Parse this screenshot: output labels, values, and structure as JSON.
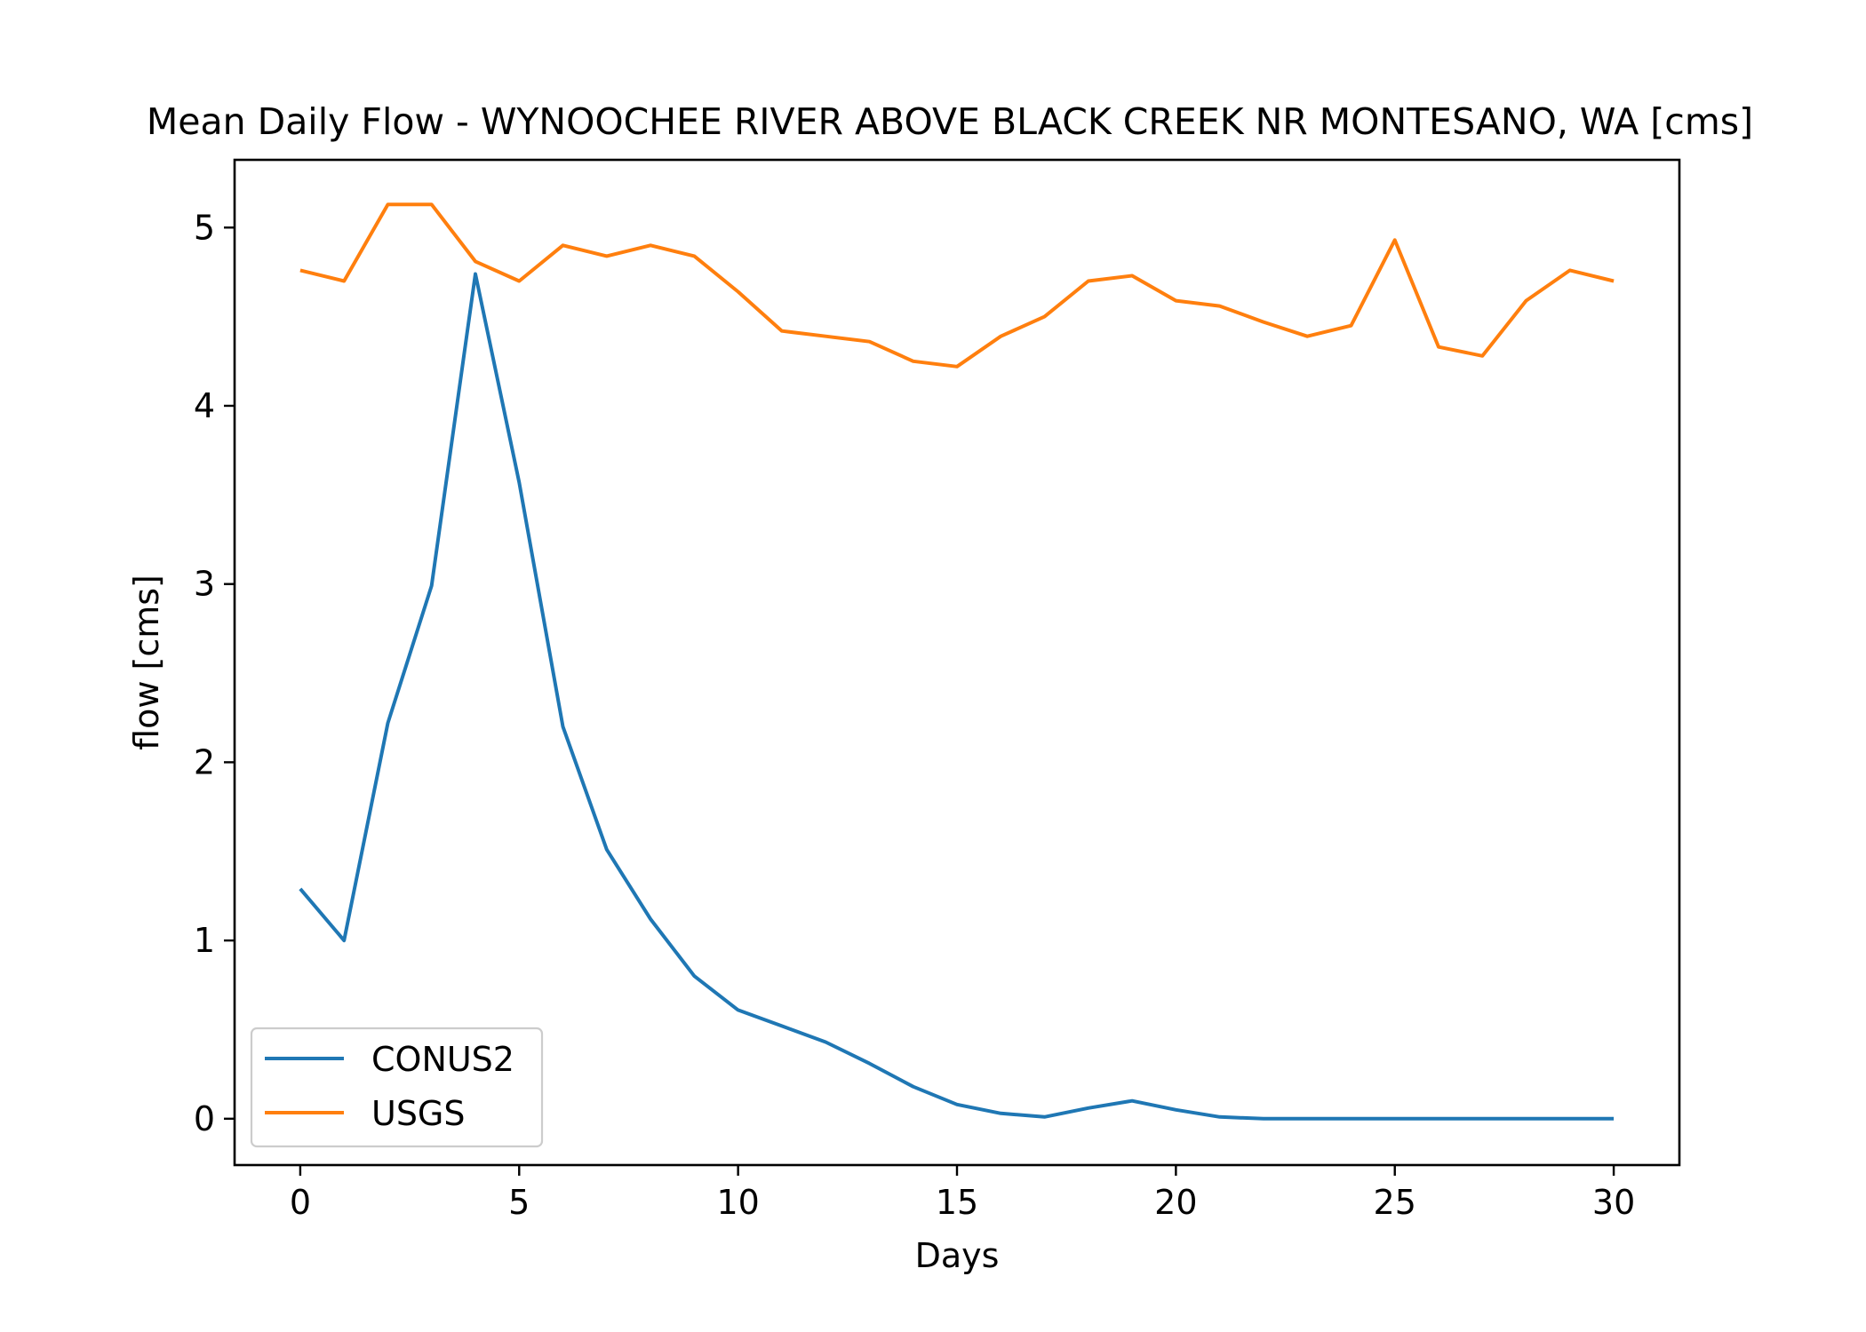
{
  "chart_data": {
    "type": "line",
    "title": "Mean Daily Flow - WYNOOCHEE RIVER ABOVE BLACK CREEK NR MONTESANO, WA [cms]",
    "xlabel": "Days",
    "ylabel": "flow [cms]",
    "xlim": [
      -1.5,
      31.5
    ],
    "ylim": [
      -0.26,
      5.38
    ],
    "xticks": [
      0,
      5,
      10,
      15,
      20,
      25,
      30
    ],
    "yticks": [
      0,
      1,
      2,
      3,
      4,
      5
    ],
    "grid": false,
    "legend_position": "lower-left",
    "x": [
      0,
      1,
      2,
      3,
      4,
      5,
      6,
      7,
      8,
      9,
      10,
      11,
      12,
      13,
      14,
      15,
      16,
      17,
      18,
      19,
      20,
      21,
      22,
      23,
      24,
      25,
      26,
      27,
      28,
      29,
      30
    ],
    "series": [
      {
        "name": "CONUS2",
        "color": "#1f77b4",
        "values": [
          1.29,
          1.0,
          2.22,
          2.99,
          4.74,
          3.57,
          2.2,
          1.51,
          1.12,
          0.8,
          0.61,
          0.52,
          0.43,
          0.31,
          0.18,
          0.08,
          0.03,
          0.01,
          0.06,
          0.1,
          0.05,
          0.01,
          0.0,
          0.0,
          0.0,
          0.0,
          0.0,
          0.0,
          0.0,
          0.0,
          0.0
        ]
      },
      {
        "name": "USGS",
        "color": "#ff7f0e",
        "values": [
          4.76,
          4.7,
          5.13,
          5.13,
          4.81,
          4.7,
          4.9,
          4.84,
          4.9,
          4.84,
          4.64,
          4.42,
          4.39,
          4.36,
          4.25,
          4.22,
          4.39,
          4.5,
          4.7,
          4.73,
          4.59,
          4.56,
          4.47,
          4.39,
          4.45,
          4.93,
          4.33,
          4.28,
          4.59,
          4.76,
          4.7
        ]
      }
    ]
  }
}
